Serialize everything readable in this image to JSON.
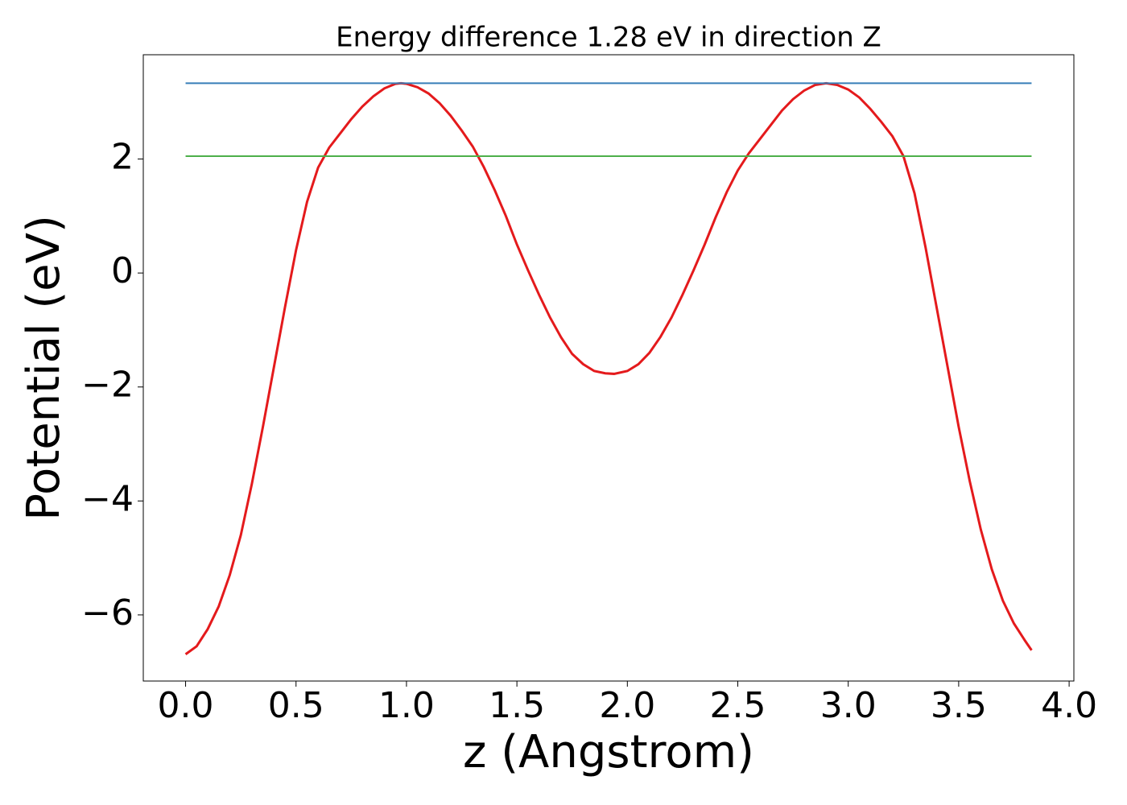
{
  "chart_data": {
    "type": "line",
    "title": "Energy difference 1.28 eV in direction Z",
    "x_label": "z (Angstrom)",
    "y_label": "Potential (eV)",
    "xlim": [
      -0.1915,
      4.0215
    ],
    "ylim": [
      -7.16,
      3.83
    ],
    "xticks": [
      {
        "value": 0,
        "label": "0.0"
      },
      0.5,
      {
        "value": 1,
        "label": "1.0"
      },
      1.5,
      {
        "value": 2,
        "label": "2.0"
      },
      2.5,
      {
        "value": 3,
        "label": "3.0"
      },
      3.5,
      {
        "value": 4,
        "label": "4.0"
      }
    ],
    "yticks": [
      {
        "value": -6,
        "label": "−6"
      },
      {
        "value": -4,
        "label": "−4"
      },
      {
        "value": -2,
        "label": "−2"
      },
      0,
      2
    ],
    "series": [
      {
        "color": "#e41a1c",
        "x": [
          0,
          0.05,
          0.1,
          0.15,
          0.2,
          0.25,
          0.3,
          0.35,
          0.4,
          0.45,
          0.5,
          0.55,
          0.6,
          0.65,
          0.7,
          0.75,
          0.8,
          0.85,
          0.9,
          0.95,
          0.975,
          1,
          1.05,
          1.1,
          1.15,
          1.2,
          1.25,
          1.3,
          1.35,
          1.4,
          1.45,
          1.5,
          1.55,
          1.6,
          1.65,
          1.7,
          1.75,
          1.8,
          1.85,
          1.9,
          1.94,
          2,
          2.05,
          2.1,
          2.15,
          2.2,
          2.25,
          2.3,
          2.35,
          2.4,
          2.45,
          2.5,
          2.55,
          2.6,
          2.65,
          2.7,
          2.75,
          2.8,
          2.85,
          2.9,
          2.95,
          3,
          3.05,
          3.1,
          3.15,
          3.2,
          3.25,
          3.3,
          3.35,
          3.4,
          3.45,
          3.5,
          3.55,
          3.6,
          3.65,
          3.7,
          3.75,
          3.8,
          3.83
        ],
        "values": [
          -6.69,
          -6.55,
          -6.25,
          -5.85,
          -5.3,
          -4.6,
          -3.7,
          -2.7,
          -1.65,
          -0.6,
          0.4,
          1.25,
          1.85,
          2.2,
          2.45,
          2.7,
          2.92,
          3.1,
          3.24,
          3.32,
          3.33,
          3.32,
          3.26,
          3.15,
          2.98,
          2.76,
          2.5,
          2.22,
          1.86,
          1.45,
          1.0,
          0.5,
          0.05,
          -0.38,
          -0.78,
          -1.13,
          -1.42,
          -1.6,
          -1.72,
          -1.76,
          -1.77,
          -1.72,
          -1.6,
          -1.4,
          -1.12,
          -0.78,
          -0.38,
          0.05,
          0.5,
          0.98,
          1.42,
          1.8,
          2.1,
          2.35,
          2.6,
          2.85,
          3.05,
          3.2,
          3.3,
          3.33,
          3.3,
          3.22,
          3.08,
          2.88,
          2.65,
          2.4,
          2.05,
          1.4,
          0.45,
          -0.6,
          -1.65,
          -2.7,
          -3.65,
          -4.5,
          -5.2,
          -5.75,
          -6.15,
          -6.45,
          -6.62
        ]
      },
      {
        "color": "#377eb8",
        "x": [
          0,
          3.83
        ],
        "values": [
          3.33,
          3.33
        ]
      },
      {
        "color": "#4daf4a",
        "x": [
          0,
          3.83
        ],
        "values": [
          2.05,
          2.05
        ]
      }
    ]
  }
}
